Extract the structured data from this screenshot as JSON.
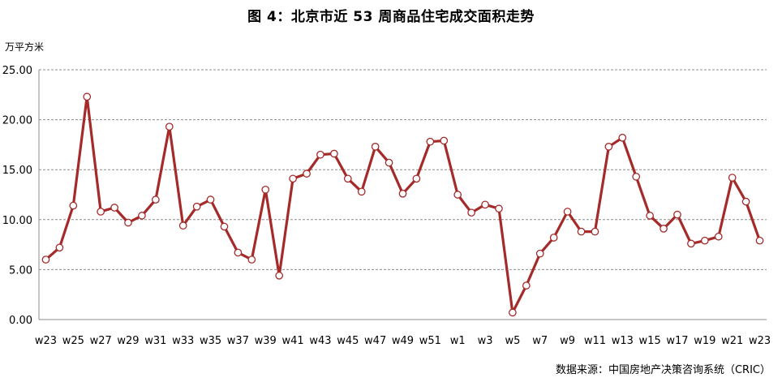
{
  "chart_data": {
    "type": "line",
    "title": "图 4：北京市近 53 周商品住宅成交面积走势",
    "ylabel": "万平方米",
    "source": "数据来源：中国房地产决策咨询系统（CRIC）",
    "ylim": [
      0,
      25
    ],
    "yticks": [
      "0.00",
      "5.00",
      "10.00",
      "15.00",
      "20.00",
      "25.00"
    ],
    "x": [
      "w23",
      "w24",
      "w25",
      "w26",
      "w27",
      "w28",
      "w29",
      "w30",
      "w31",
      "w32",
      "w33",
      "w34",
      "w35",
      "w36",
      "w37",
      "w38",
      "w39",
      "w40",
      "w41",
      "w42",
      "w43",
      "w44",
      "w45",
      "w46",
      "w47",
      "w48",
      "w49",
      "w50",
      "w51",
      "w52",
      "w1",
      "w2",
      "w3",
      "w4",
      "w5",
      "w6",
      "w7",
      "w8",
      "w9",
      "w10",
      "w11",
      "w12",
      "w13",
      "w14",
      "w15",
      "w16",
      "w17",
      "w18",
      "w19",
      "w20",
      "w21",
      "w22",
      "w23"
    ],
    "xtick_labels": [
      "w23",
      "w25",
      "w27",
      "w29",
      "w31",
      "w33",
      "w35",
      "w37",
      "w39",
      "w41",
      "w43",
      "w45",
      "w47",
      "w49",
      "w51",
      "w1",
      "w3",
      "w5",
      "w7",
      "w9",
      "w11",
      "w13",
      "w15",
      "w17",
      "w19",
      "w21",
      "w23"
    ],
    "series": [
      {
        "values": [
          6.0,
          7.2,
          11.4,
          22.3,
          10.8,
          11.2,
          9.7,
          10.4,
          12.0,
          19.3,
          9.4,
          11.3,
          12.0,
          9.3,
          6.7,
          6.0,
          13.0,
          4.4,
          14.1,
          14.6,
          16.5,
          16.6,
          14.1,
          12.8,
          17.3,
          15.7,
          12.6,
          14.1,
          17.8,
          17.9,
          12.5,
          10.7,
          11.5,
          11.1,
          0.7,
          3.4,
          6.6,
          8.2,
          10.8,
          8.8,
          8.8,
          17.3,
          18.2,
          14.3,
          10.4,
          9.1,
          10.5,
          7.6,
          7.9,
          8.3,
          14.2,
          11.8,
          7.9
        ]
      }
    ],
    "line_color": "#A52A2A",
    "grid": true
  }
}
